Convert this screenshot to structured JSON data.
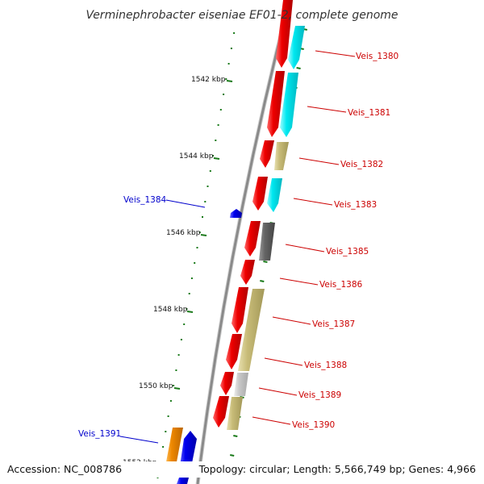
{
  "title": "Verminephrobacter eiseniae EF01-2, complete genome",
  "footer": {
    "accession": "Accession: NC_008786",
    "topology": "Topology: circular; Length: 5,566,749 bp; Genes: 4,966"
  },
  "colors": {
    "backbone": "#8a8a8a",
    "tick": "#1a7a1a",
    "forward_label": "#cc0000",
    "reverse_label": "#0000cc",
    "red": "#ee0000",
    "cyan": "#00e8f0",
    "tan": "#c8bc78",
    "darkgray": "#666666",
    "lightgray": "#c8c8c8",
    "orange": "#ee8800",
    "blue": "#0000ee"
  },
  "scale_labels": [
    "1542 kbp",
    "1544 kbp",
    "1546 kbp",
    "1548 kbp",
    "1550 kbp",
    "1552 kbp"
  ],
  "gene_labels": [
    {
      "text": "Veis_1380",
      "strand": "forward"
    },
    {
      "text": "Veis_1381",
      "strand": "forward"
    },
    {
      "text": "Veis_1382",
      "strand": "forward"
    },
    {
      "text": "Veis_1383",
      "strand": "forward"
    },
    {
      "text": "Veis_1384",
      "strand": "reverse"
    },
    {
      "text": "Veis_1385",
      "strand": "forward"
    },
    {
      "text": "Veis_1386",
      "strand": "forward"
    },
    {
      "text": "Veis_1387",
      "strand": "forward"
    },
    {
      "text": "Veis_1388",
      "strand": "forward"
    },
    {
      "text": "Veis_1389",
      "strand": "forward"
    },
    {
      "text": "Veis_1390",
      "strand": "forward"
    },
    {
      "text": "Veis_1391",
      "strand": "reverse"
    }
  ]
}
